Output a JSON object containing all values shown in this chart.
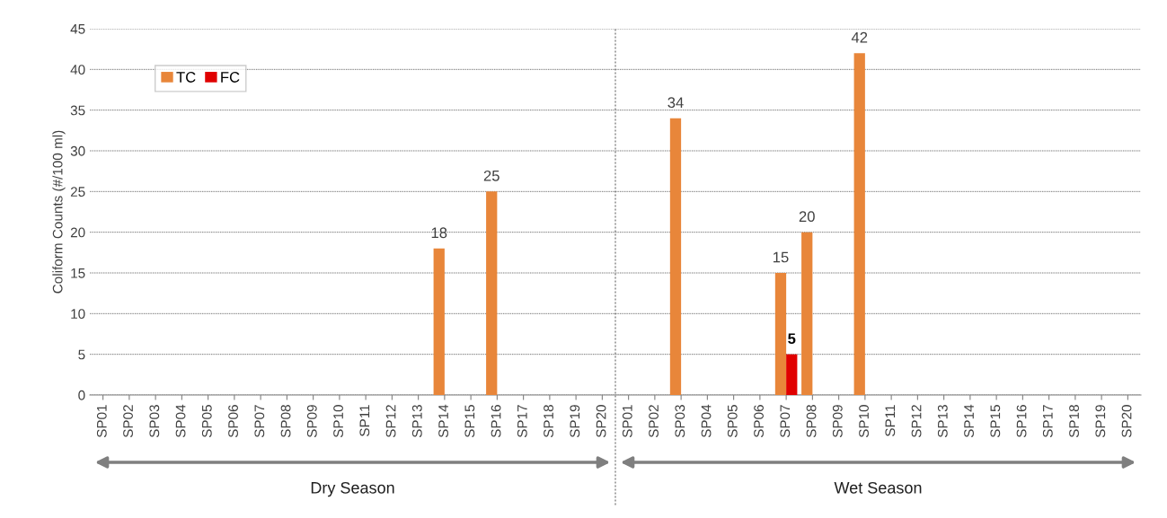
{
  "chart_data": {
    "type": "bar",
    "ylabel": "Coliform Counts (#/100 ml)",
    "categories": [
      "SP01",
      "SP02",
      "SP03",
      "SP04",
      "SP05",
      "SP06",
      "SP07",
      "SP08",
      "SP09",
      "SP10",
      "SP11",
      "SP12",
      "SP13",
      "SP14",
      "SP15",
      "SP16",
      "SP17",
      "SP18",
      "SP19",
      "SP20",
      "SP01",
      "SP02",
      "SP03",
      "SP04",
      "SP05",
      "SP06",
      "SP07",
      "SP08",
      "SP09",
      "SP10",
      "SP11",
      "SP12",
      "SP13",
      "SP14",
      "SP15",
      "SP16",
      "SP17",
      "SP18",
      "SP19",
      "SP20"
    ],
    "series": [
      {
        "name": "TC",
        "color": "#e8863a",
        "values": [
          0,
          0,
          0,
          0,
          0,
          0,
          0,
          0,
          0,
          0,
          0,
          0,
          0,
          18,
          0,
          25,
          0,
          0,
          0,
          0,
          0,
          0,
          34,
          0,
          0,
          0,
          15,
          20,
          0,
          42,
          0,
          0,
          0,
          0,
          0,
          0,
          0,
          0,
          0,
          0
        ],
        "value_labels": [
          null,
          null,
          null,
          null,
          null,
          null,
          null,
          null,
          null,
          null,
          null,
          null,
          null,
          "18",
          null,
          "25",
          null,
          null,
          null,
          null,
          null,
          null,
          "34",
          null,
          null,
          null,
          "15",
          "20",
          null,
          "42",
          null,
          null,
          null,
          null,
          null,
          null,
          null,
          null,
          null,
          null
        ]
      },
      {
        "name": "FC",
        "color": "#e00000",
        "values": [
          0,
          0,
          0,
          0,
          0,
          0,
          0,
          0,
          0,
          0,
          0,
          0,
          0,
          0,
          0,
          0,
          0,
          0,
          0,
          0,
          0,
          0,
          0,
          0,
          0,
          0,
          5,
          0,
          0,
          0,
          0,
          0,
          0,
          0,
          0,
          0,
          0,
          0,
          0,
          0
        ],
        "value_labels": [
          null,
          null,
          null,
          null,
          null,
          null,
          null,
          null,
          null,
          null,
          null,
          null,
          null,
          null,
          null,
          null,
          null,
          null,
          null,
          null,
          null,
          null,
          null,
          null,
          null,
          null,
          "5",
          null,
          null,
          null,
          null,
          null,
          null,
          null,
          null,
          null,
          null,
          null,
          null,
          null
        ]
      }
    ],
    "ylim": [
      0,
      45
    ],
    "yticks": [
      0,
      5,
      10,
      15,
      20,
      25,
      30,
      35,
      40,
      45
    ],
    "grid": "y",
    "legend": "top left",
    "annotations": [
      "Dry Season",
      "Wet Season"
    ]
  }
}
